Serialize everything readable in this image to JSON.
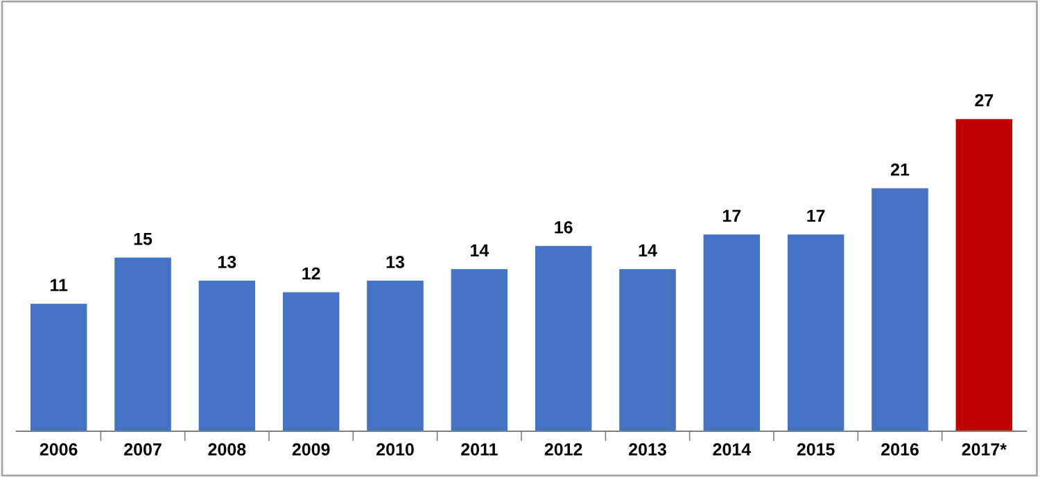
{
  "chart_data": {
    "type": "bar",
    "categories": [
      "2006",
      "2007",
      "2008",
      "2009",
      "2010",
      "2011",
      "2012",
      "2013",
      "2014",
      "2015",
      "2016",
      "2017*"
    ],
    "values": [
      11,
      15,
      13,
      12,
      13,
      14,
      16,
      14,
      17,
      17,
      21,
      27
    ],
    "colors": [
      "#4472c4",
      "#4472c4",
      "#4472c4",
      "#4472c4",
      "#4472c4",
      "#4472c4",
      "#4472c4",
      "#4472c4",
      "#4472c4",
      "#4472c4",
      "#4472c4",
      "#c00000"
    ],
    "data_labels": true,
    "grid": false,
    "legend": false
  }
}
